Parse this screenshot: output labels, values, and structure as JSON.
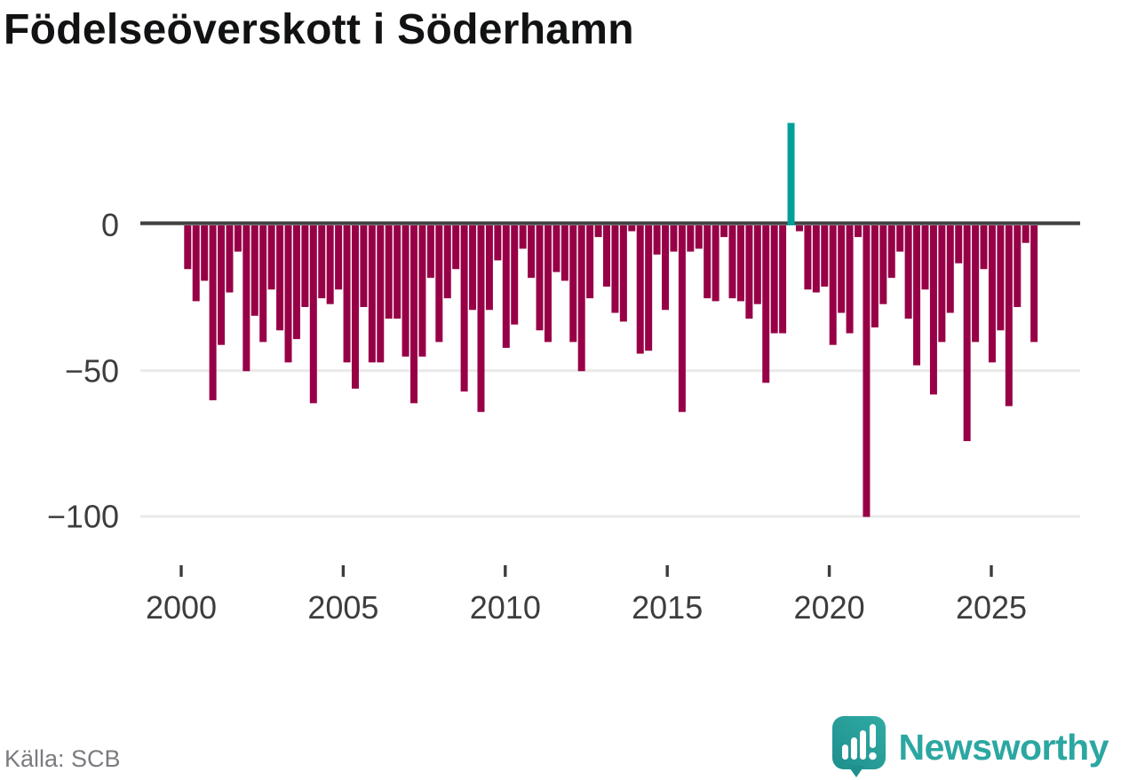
{
  "title": "Födelseöverskott i Söderhamn",
  "source": "Källa: SCB",
  "brand": {
    "name": "Newsworthy",
    "color": "#2ba7a1"
  },
  "chart_data": {
    "type": "bar",
    "title": "Födelseöverskott i Söderhamn",
    "period": "quarterly",
    "xlabel": "",
    "ylabel": "",
    "ylim": [
      -110,
      40
    ],
    "yticks": [
      0,
      -50,
      -100
    ],
    "ytick_labels": [
      "0",
      "−50",
      "−100"
    ],
    "xtick_labels": [
      "2000",
      "2005",
      "2010",
      "2015",
      "2020",
      "2025"
    ],
    "grid": "horizontal",
    "legend": "none",
    "positive_color": "#00a09a",
    "negative_color": "#970046",
    "highlighted_quarter": "2018 Q1",
    "quarters": [
      "2000 Q1",
      "2000 Q2",
      "2000 Q3",
      "2000 Q4",
      "2001 Q1",
      "2001 Q2",
      "2001 Q3",
      "2001 Q4",
      "2002 Q1",
      "2002 Q2",
      "2002 Q3",
      "2002 Q4",
      "2003 Q1",
      "2003 Q2",
      "2003 Q3",
      "2003 Q4",
      "2004 Q1",
      "2004 Q2",
      "2004 Q3",
      "2004 Q4",
      "2005 Q1",
      "2005 Q2",
      "2005 Q3",
      "2005 Q4",
      "2006 Q1",
      "2006 Q2",
      "2006 Q3",
      "2006 Q4",
      "2007 Q1",
      "2007 Q2",
      "2007 Q3",
      "2007 Q4",
      "2008 Q1",
      "2008 Q2",
      "2008 Q3",
      "2008 Q4",
      "2009 Q1",
      "2009 Q2",
      "2009 Q3",
      "2009 Q4",
      "2010 Q1",
      "2010 Q2",
      "2010 Q3",
      "2010 Q4",
      "2011 Q1",
      "2011 Q2",
      "2011 Q3",
      "2011 Q4",
      "2012 Q1",
      "2012 Q2",
      "2012 Q3",
      "2012 Q4",
      "2013 Q1",
      "2013 Q2",
      "2013 Q3",
      "2013 Q4",
      "2014 Q1",
      "2014 Q2",
      "2014 Q3",
      "2014 Q4",
      "2015 Q1",
      "2015 Q2",
      "2015 Q3",
      "2015 Q4",
      "2016 Q1",
      "2016 Q2",
      "2016 Q3",
      "2016 Q4",
      "2017 Q1",
      "2017 Q2",
      "2017 Q3",
      "2017 Q4",
      "2018 Q1",
      "2018 Q2",
      "2018 Q3",
      "2018 Q4",
      "2019 Q1",
      "2019 Q2",
      "2019 Q3",
      "2019 Q4",
      "2020 Q1",
      "2020 Q2",
      "2020 Q3",
      "2020 Q4",
      "2021 Q1",
      "2021 Q2",
      "2021 Q3",
      "2021 Q4",
      "2022 Q1",
      "2022 Q2",
      "2022 Q3",
      "2022 Q4",
      "2023 Q1",
      "2023 Q2",
      "2023 Q3",
      "2023 Q4",
      "2024 Q1",
      "2024 Q2",
      "2024 Q3",
      "2024 Q4",
      "2025 Q1",
      "2025 Q2"
    ],
    "values": [
      -15,
      -26,
      -19,
      -60,
      -41,
      -23,
      -9,
      -50,
      -31,
      -40,
      -22,
      -36,
      -47,
      -39,
      -28,
      -61,
      -25,
      -27,
      -22,
      -47,
      -56,
      -28,
      -47,
      -47,
      -32,
      -32,
      -45,
      -61,
      -45,
      -18,
      -40,
      -25,
      -15,
      -57,
      -29,
      -64,
      -29,
      -12,
      -42,
      -34,
      -8,
      -18,
      -36,
      -40,
      -16,
      -19,
      -40,
      -50,
      -25,
      -4,
      -21,
      -30,
      -33,
      -2,
      -44,
      -43,
      -10,
      -29,
      -9,
      -64,
      -9,
      -8,
      -25,
      -26,
      -4,
      -25,
      -26,
      -32,
      -27,
      -54,
      -37,
      -37,
      35,
      -2,
      -22,
      -23,
      -21,
      -41,
      -30,
      -37,
      -4,
      -100,
      -35,
      -27,
      -18,
      -9,
      -32,
      -48,
      -22,
      -58,
      -40,
      -30,
      -13,
      -74,
      -40,
      -15,
      -47,
      -36,
      -62,
      -28,
      -6,
      -40
    ],
    "source": "Källa: SCB"
  }
}
